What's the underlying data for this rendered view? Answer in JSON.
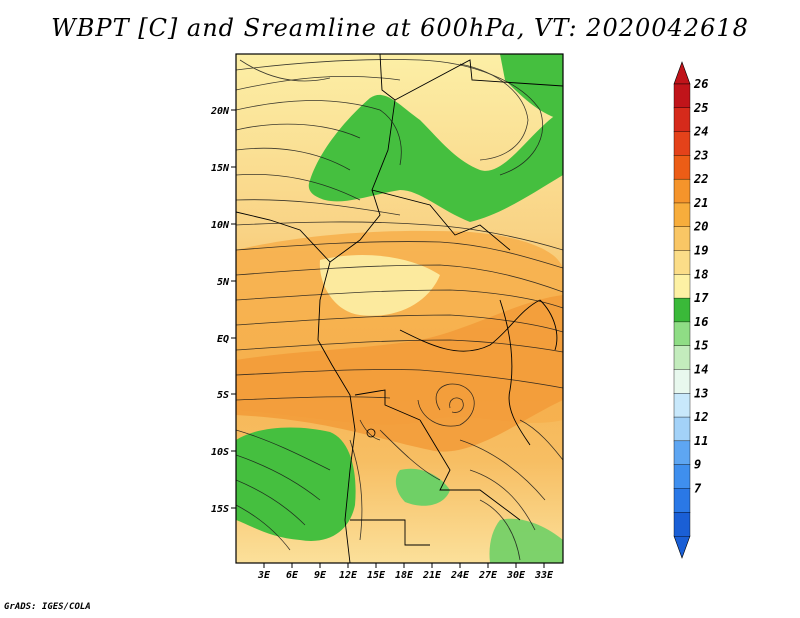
{
  "title": "WBPT [C] and Sreamline at 600hPa, VT: 2020042618",
  "credit": "GrADS: IGES/COLA",
  "lat_labels": [
    "20N",
    "15N",
    "10N",
    "5N",
    "EQ",
    "5S",
    "10S",
    "15S"
  ],
  "lon_labels": [
    "3E",
    "6E",
    "9E",
    "12E",
    "15E",
    "18E",
    "21E",
    "24E",
    "27E",
    "30E",
    "33E"
  ],
  "colorbar": {
    "labels": [
      "7",
      "9",
      "11",
      "12",
      "13",
      "14",
      "15",
      "16",
      "17",
      "18",
      "19",
      "20",
      "21",
      "22",
      "23",
      "24",
      "25",
      "26"
    ],
    "colors": [
      "#1a5fd6",
      "#2a78e6",
      "#3f8fee",
      "#5ea6f2",
      "#80bdf5",
      "#a3d2f8",
      "#c8e8fb",
      "#e8f8ee",
      "#c3ecbd",
      "#8fdd85",
      "#5ccc55",
      "#3ab939",
      "#fdf1a4",
      "#fbdd88",
      "#f9c665",
      "#f7ad3c",
      "#f5942b",
      "#f07a1e",
      "#ec5d16",
      "#e4421a",
      "#d62a1b",
      "#c0141a"
    ]
  },
  "field_colors": {
    "green": "#45bf3f",
    "light_green": "#8fdc81",
    "pale_yellow": "#fcefa6",
    "light_orange": "#fad58a",
    "orange": "#f6b04e",
    "dark_orange": "#f29b38"
  }
}
